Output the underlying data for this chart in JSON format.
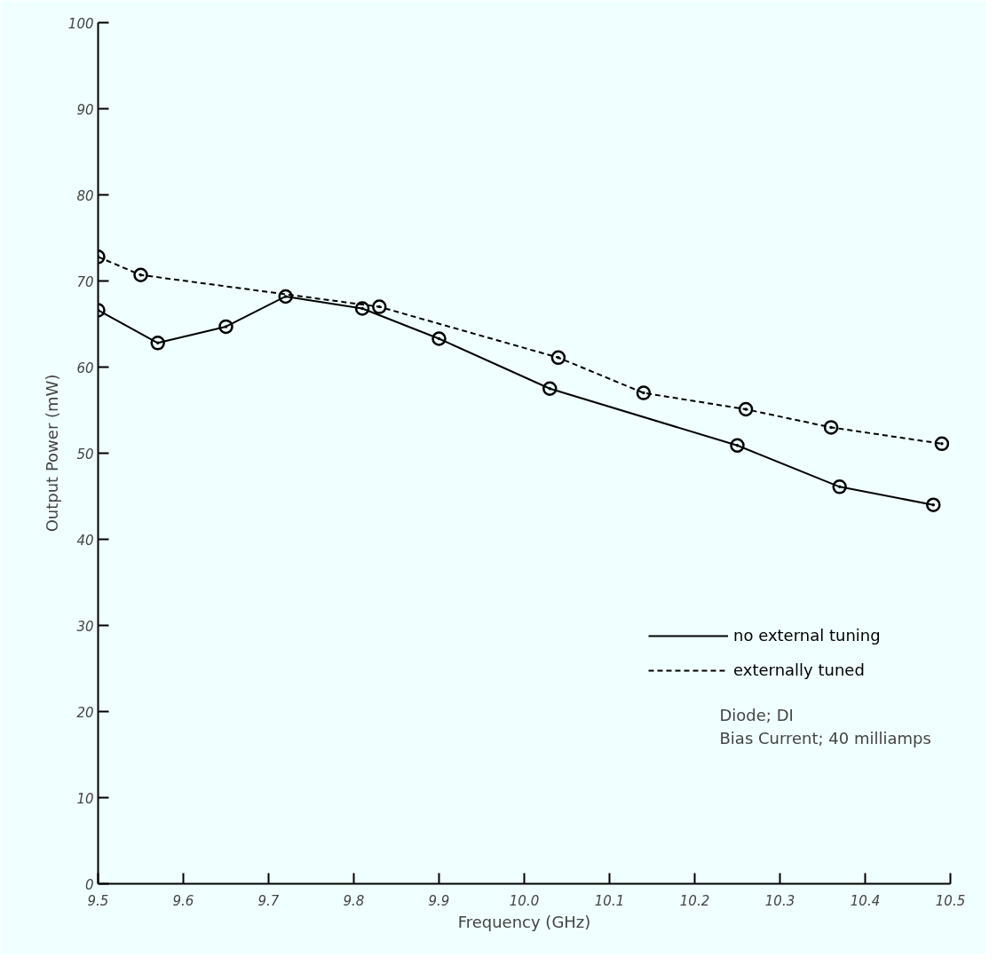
{
  "chart_data": {
    "type": "line",
    "xlabel": "Frequency (GHz)",
    "ylabel": "Output Power (mW)",
    "xlim": [
      9.5,
      10.5
    ],
    "ylim": [
      0,
      100
    ],
    "xticks": [
      9.5,
      9.6,
      9.7,
      9.8,
      9.9,
      {
        "value": 10,
        "label": "10.0"
      },
      10.1,
      10.2,
      10.3,
      10.4,
      10.5
    ],
    "yticks": [
      0,
      10,
      20,
      30,
      40,
      50,
      60,
      70,
      80,
      90,
      100
    ],
    "grid": false,
    "legend": "bottom right",
    "marker": "circle",
    "series": [
      {
        "name": "no external tuning",
        "color": "#000000",
        "line_style": "solid",
        "x": [
          9.5,
          9.57,
          9.65,
          9.72,
          9.81,
          9.9,
          10.03,
          10.25,
          10.37,
          10.48
        ],
        "values": [
          66.6,
          62.8,
          64.7,
          68.2,
          66.8,
          63.3,
          57.5,
          50.9,
          46.1,
          44.0
        ]
      },
      {
        "name": "externally tuned",
        "color": "#000000",
        "line_style": "dashed",
        "x": [
          9.5,
          9.55,
          9.83,
          10.04,
          10.14,
          10.26,
          10.36,
          10.49
        ],
        "values": [
          72.8,
          70.7,
          67.0,
          61.1,
          57.0,
          55.1,
          53.0,
          51.1
        ]
      }
    ],
    "annotations": [
      "Diode; DI",
      "Bias Current;  40 milliamps"
    ]
  }
}
